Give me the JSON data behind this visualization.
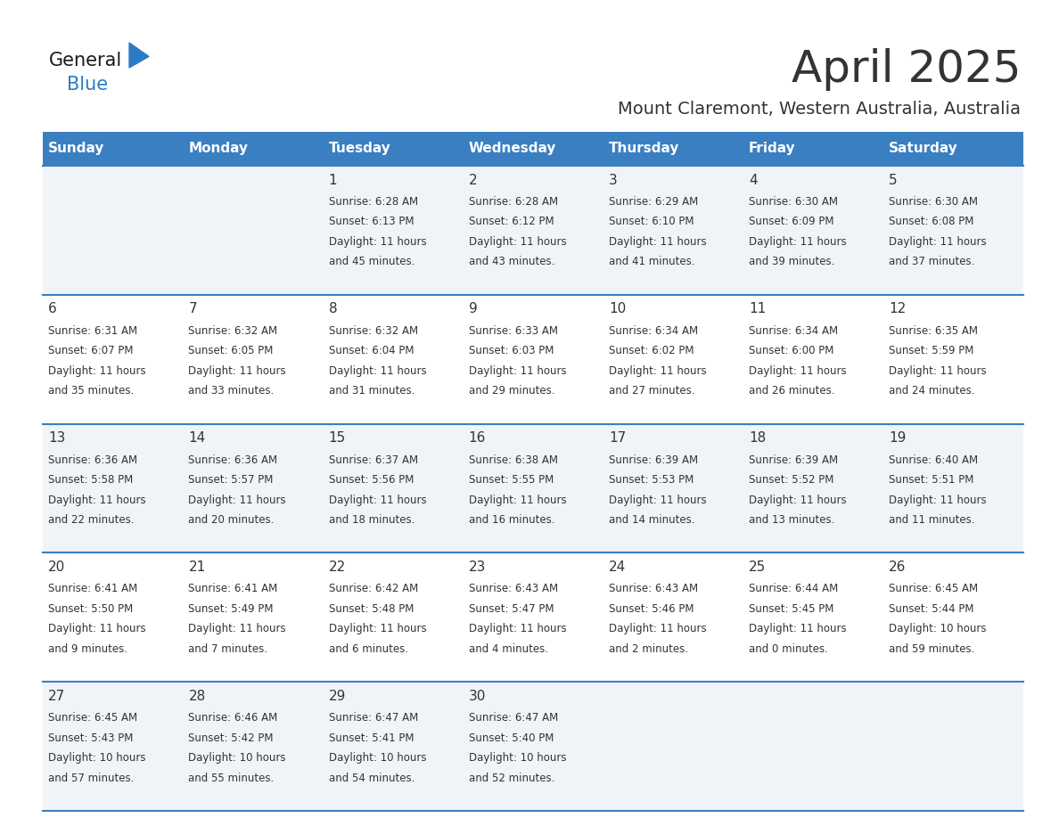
{
  "title": "April 2025",
  "subtitle": "Mount Claremont, Western Australia, Australia",
  "days_of_week": [
    "Sunday",
    "Monday",
    "Tuesday",
    "Wednesday",
    "Thursday",
    "Friday",
    "Saturday"
  ],
  "header_bg": "#3a7fc1",
  "header_text": "#ffffff",
  "row_bg_odd": "#f0f4f8",
  "row_bg_even": "#ffffff",
  "cell_text": "#333333",
  "border_color": "#3a7fc1",
  "title_fontsize": 36,
  "subtitle_fontsize": 14,
  "day_header_fontsize": 11,
  "cell_day_fontsize": 11,
  "cell_info_fontsize": 8.5,
  "calendar_data": [
    [
      null,
      null,
      {
        "day": "1",
        "sunrise": "6:28 AM",
        "sunset": "6:13 PM",
        "daylight_h": "11 hours",
        "daylight_m": "45 minutes"
      },
      {
        "day": "2",
        "sunrise": "6:28 AM",
        "sunset": "6:12 PM",
        "daylight_h": "11 hours",
        "daylight_m": "43 minutes"
      },
      {
        "day": "3",
        "sunrise": "6:29 AM",
        "sunset": "6:10 PM",
        "daylight_h": "11 hours",
        "daylight_m": "41 minutes"
      },
      {
        "day": "4",
        "sunrise": "6:30 AM",
        "sunset": "6:09 PM",
        "daylight_h": "11 hours",
        "daylight_m": "39 minutes"
      },
      {
        "day": "5",
        "sunrise": "6:30 AM",
        "sunset": "6:08 PM",
        "daylight_h": "11 hours",
        "daylight_m": "37 minutes"
      }
    ],
    [
      {
        "day": "6",
        "sunrise": "6:31 AM",
        "sunset": "6:07 PM",
        "daylight_h": "11 hours",
        "daylight_m": "35 minutes"
      },
      {
        "day": "7",
        "sunrise": "6:32 AM",
        "sunset": "6:05 PM",
        "daylight_h": "11 hours",
        "daylight_m": "33 minutes"
      },
      {
        "day": "8",
        "sunrise": "6:32 AM",
        "sunset": "6:04 PM",
        "daylight_h": "11 hours",
        "daylight_m": "31 minutes"
      },
      {
        "day": "9",
        "sunrise": "6:33 AM",
        "sunset": "6:03 PM",
        "daylight_h": "11 hours",
        "daylight_m": "29 minutes"
      },
      {
        "day": "10",
        "sunrise": "6:34 AM",
        "sunset": "6:02 PM",
        "daylight_h": "11 hours",
        "daylight_m": "27 minutes"
      },
      {
        "day": "11",
        "sunrise": "6:34 AM",
        "sunset": "6:00 PM",
        "daylight_h": "11 hours",
        "daylight_m": "26 minutes"
      },
      {
        "day": "12",
        "sunrise": "6:35 AM",
        "sunset": "5:59 PM",
        "daylight_h": "11 hours",
        "daylight_m": "24 minutes"
      }
    ],
    [
      {
        "day": "13",
        "sunrise": "6:36 AM",
        "sunset": "5:58 PM",
        "daylight_h": "11 hours",
        "daylight_m": "22 minutes"
      },
      {
        "day": "14",
        "sunrise": "6:36 AM",
        "sunset": "5:57 PM",
        "daylight_h": "11 hours",
        "daylight_m": "20 minutes"
      },
      {
        "day": "15",
        "sunrise": "6:37 AM",
        "sunset": "5:56 PM",
        "daylight_h": "11 hours",
        "daylight_m": "18 minutes"
      },
      {
        "day": "16",
        "sunrise": "6:38 AM",
        "sunset": "5:55 PM",
        "daylight_h": "11 hours",
        "daylight_m": "16 minutes"
      },
      {
        "day": "17",
        "sunrise": "6:39 AM",
        "sunset": "5:53 PM",
        "daylight_h": "11 hours",
        "daylight_m": "14 minutes"
      },
      {
        "day": "18",
        "sunrise": "6:39 AM",
        "sunset": "5:52 PM",
        "daylight_h": "11 hours",
        "daylight_m": "13 minutes"
      },
      {
        "day": "19",
        "sunrise": "6:40 AM",
        "sunset": "5:51 PM",
        "daylight_h": "11 hours",
        "daylight_m": "11 minutes"
      }
    ],
    [
      {
        "day": "20",
        "sunrise": "6:41 AM",
        "sunset": "5:50 PM",
        "daylight_h": "11 hours",
        "daylight_m": "9 minutes"
      },
      {
        "day": "21",
        "sunrise": "6:41 AM",
        "sunset": "5:49 PM",
        "daylight_h": "11 hours",
        "daylight_m": "7 minutes"
      },
      {
        "day": "22",
        "sunrise": "6:42 AM",
        "sunset": "5:48 PM",
        "daylight_h": "11 hours",
        "daylight_m": "6 minutes"
      },
      {
        "day": "23",
        "sunrise": "6:43 AM",
        "sunset": "5:47 PM",
        "daylight_h": "11 hours",
        "daylight_m": "4 minutes"
      },
      {
        "day": "24",
        "sunrise": "6:43 AM",
        "sunset": "5:46 PM",
        "daylight_h": "11 hours",
        "daylight_m": "2 minutes"
      },
      {
        "day": "25",
        "sunrise": "6:44 AM",
        "sunset": "5:45 PM",
        "daylight_h": "11 hours",
        "daylight_m": "0 minutes"
      },
      {
        "day": "26",
        "sunrise": "6:45 AM",
        "sunset": "5:44 PM",
        "daylight_h": "10 hours",
        "daylight_m": "59 minutes"
      }
    ],
    [
      {
        "day": "27",
        "sunrise": "6:45 AM",
        "sunset": "5:43 PM",
        "daylight_h": "10 hours",
        "daylight_m": "57 minutes"
      },
      {
        "day": "28",
        "sunrise": "6:46 AM",
        "sunset": "5:42 PM",
        "daylight_h": "10 hours",
        "daylight_m": "55 minutes"
      },
      {
        "day": "29",
        "sunrise": "6:47 AM",
        "sunset": "5:41 PM",
        "daylight_h": "10 hours",
        "daylight_m": "54 minutes"
      },
      {
        "day": "30",
        "sunrise": "6:47 AM",
        "sunset": "5:40 PM",
        "daylight_h": "10 hours",
        "daylight_m": "52 minutes"
      },
      null,
      null,
      null
    ]
  ],
  "logo_text1": "General",
  "logo_text2": "Blue",
  "logo_text_color1": "#1a1a1a",
  "logo_text_color2": "#2b7bc4",
  "logo_triangle_color": "#2b7bc4"
}
